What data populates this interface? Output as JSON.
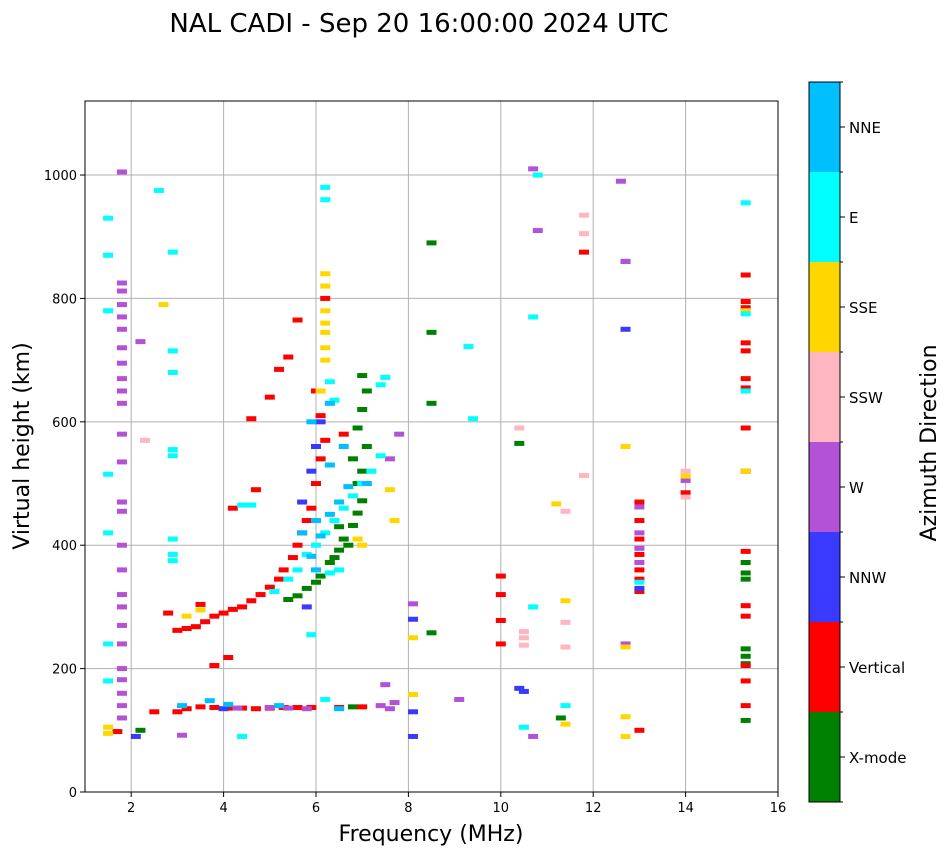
{
  "chart_data": {
    "type": "scatter",
    "subtype": "ionogram",
    "title": "NAL CADI - Sep 20 16:00:00 2024 UTC",
    "xlabel": "Frequency (MHz)",
    "ylabel": "Virtual height (km)",
    "xlim": [
      1,
      16
    ],
    "ylim": [
      0,
      1120
    ],
    "xticks": [
      2,
      4,
      6,
      8,
      10,
      12,
      14,
      16
    ],
    "yticks": [
      0,
      200,
      400,
      600,
      800,
      1000
    ],
    "grid": true,
    "colorbar": {
      "label": "Azimuth Direction",
      "categories": [
        "X-mode",
        "Vertical",
        "NNW",
        "W",
        "SSW",
        "SSE",
        "E",
        "NNE"
      ],
      "colors": [
        "#008000",
        "#ff0000",
        "#3a3aff",
        "#b452d7",
        "#ffb6c1",
        "#ffd700",
        "#00ffff",
        "#00bfff"
      ]
    },
    "series": [
      {
        "name": "X-mode",
        "color": "#008000",
        "points": [
          [
            5.4,
            312
          ],
          [
            5.6,
            318
          ],
          [
            5.8,
            330
          ],
          [
            6.0,
            340
          ],
          [
            6.1,
            350
          ],
          [
            6.3,
            372
          ],
          [
            6.5,
            392
          ],
          [
            6.6,
            410
          ],
          [
            6.8,
            432
          ],
          [
            6.9,
            452
          ],
          [
            7.0,
            472
          ],
          [
            6.9,
            500
          ],
          [
            7.0,
            520
          ],
          [
            6.8,
            540
          ],
          [
            7.1,
            560
          ],
          [
            6.9,
            590
          ],
          [
            7.0,
            620
          ],
          [
            7.1,
            650
          ],
          [
            7.0,
            675
          ],
          [
            6.5,
            430
          ],
          [
            6.4,
            380
          ],
          [
            6.7,
            400
          ],
          [
            6.8,
            138
          ],
          [
            2.2,
            100
          ],
          [
            8.5,
            890
          ],
          [
            8.5,
            745
          ],
          [
            8.5,
            630
          ],
          [
            8.5,
            258
          ],
          [
            10.4,
            565
          ],
          [
            11.3,
            120
          ],
          [
            15.3,
            372
          ],
          [
            15.3,
            355
          ],
          [
            15.3,
            345
          ],
          [
            15.3,
            232
          ],
          [
            15.3,
            220
          ],
          [
            15.3,
            208
          ],
          [
            15.3,
            116
          ]
        ]
      },
      {
        "name": "Vertical",
        "color": "#ff0000",
        "points": [
          [
            3.0,
            262
          ],
          [
            3.2,
            265
          ],
          [
            3.4,
            268
          ],
          [
            3.6,
            276
          ],
          [
            3.8,
            285
          ],
          [
            4.0,
            290
          ],
          [
            4.2,
            296
          ],
          [
            4.4,
            300
          ],
          [
            4.6,
            310
          ],
          [
            4.8,
            320
          ],
          [
            5.0,
            332
          ],
          [
            5.2,
            345
          ],
          [
            5.3,
            360
          ],
          [
            5.5,
            380
          ],
          [
            5.6,
            400
          ],
          [
            5.7,
            420
          ],
          [
            5.8,
            440
          ],
          [
            5.9,
            460
          ],
          [
            6.0,
            500
          ],
          [
            6.1,
            540
          ],
          [
            6.2,
            570
          ],
          [
            6.1,
            610
          ],
          [
            6.0,
            650
          ],
          [
            2.8,
            290
          ],
          [
            3.5,
            304
          ],
          [
            4.2,
            460
          ],
          [
            4.7,
            490
          ],
          [
            4.6,
            605
          ],
          [
            5.0,
            640
          ],
          [
            5.2,
            685
          ],
          [
            5.4,
            705
          ],
          [
            5.6,
            765
          ],
          [
            6.2,
            800
          ],
          [
            6.6,
            580
          ],
          [
            3.0,
            130
          ],
          [
            3.2,
            135
          ],
          [
            3.5,
            138
          ],
          [
            3.8,
            137
          ],
          [
            4.1,
            136
          ],
          [
            4.4,
            136
          ],
          [
            4.7,
            135
          ],
          [
            5.0,
            136
          ],
          [
            5.3,
            137
          ],
          [
            5.6,
            137
          ],
          [
            5.9,
            137
          ],
          [
            6.5,
            137
          ],
          [
            7.0,
            138
          ],
          [
            2.5,
            130
          ],
          [
            1.7,
            98
          ],
          [
            4.1,
            218
          ],
          [
            3.8,
            205
          ],
          [
            10.0,
            350
          ],
          [
            10.0,
            320
          ],
          [
            10.0,
            278
          ],
          [
            10.0,
            240
          ],
          [
            11.8,
            875
          ],
          [
            13.0,
            470
          ],
          [
            13.0,
            440
          ],
          [
            13.0,
            410
          ],
          [
            13.0,
            385
          ],
          [
            13.0,
            360
          ],
          [
            13.0,
            345
          ],
          [
            13.0,
            325
          ],
          [
            13.0,
            100
          ],
          [
            14.0,
            485
          ],
          [
            15.3,
            838
          ],
          [
            15.3,
            795
          ],
          [
            15.3,
            785
          ],
          [
            15.3,
            728
          ],
          [
            15.3,
            715
          ],
          [
            15.3,
            670
          ],
          [
            15.3,
            655
          ],
          [
            15.3,
            590
          ],
          [
            15.3,
            520
          ],
          [
            15.3,
            390
          ],
          [
            15.3,
            302
          ],
          [
            15.3,
            285
          ],
          [
            15.3,
            205
          ],
          [
            15.3,
            180
          ],
          [
            15.3,
            140
          ]
        ]
      },
      {
        "name": "NNW",
        "color": "#3a3aff",
        "points": [
          [
            2.1,
            90
          ],
          [
            4.0,
            135
          ],
          [
            5.7,
            470
          ],
          [
            5.9,
            520
          ],
          [
            6.0,
            560
          ],
          [
            6.1,
            600
          ],
          [
            5.8,
            300
          ],
          [
            8.1,
            280
          ],
          [
            8.1,
            130
          ],
          [
            8.1,
            90
          ],
          [
            10.4,
            168
          ],
          [
            10.5,
            163
          ],
          [
            12.7,
            860
          ],
          [
            12.7,
            750
          ],
          [
            13.0,
            330
          ]
        ]
      },
      {
        "name": "W",
        "color": "#b452d7",
        "points": [
          [
            1.8,
            1005
          ],
          [
            1.8,
            825
          ],
          [
            1.8,
            812
          ],
          [
            1.8,
            790
          ],
          [
            1.8,
            770
          ],
          [
            1.8,
            750
          ],
          [
            1.8,
            720
          ],
          [
            1.8,
            695
          ],
          [
            1.8,
            670
          ],
          [
            1.8,
            650
          ],
          [
            1.8,
            630
          ],
          [
            1.8,
            580
          ],
          [
            1.8,
            535
          ],
          [
            1.8,
            470
          ],
          [
            1.8,
            455
          ],
          [
            1.8,
            400
          ],
          [
            1.8,
            360
          ],
          [
            1.8,
            320
          ],
          [
            1.8,
            300
          ],
          [
            1.8,
            270
          ],
          [
            1.8,
            240
          ],
          [
            1.8,
            200
          ],
          [
            1.8,
            182
          ],
          [
            1.8,
            160
          ],
          [
            1.8,
            140
          ],
          [
            1.8,
            120
          ],
          [
            2.2,
            730
          ],
          [
            3.1,
            92
          ],
          [
            4.3,
            136
          ],
          [
            5.0,
            137
          ],
          [
            5.4,
            136
          ],
          [
            5.8,
            135
          ],
          [
            7.4,
            140
          ],
          [
            7.6,
            135
          ],
          [
            7.7,
            145
          ],
          [
            7.5,
            174
          ],
          [
            7.8,
            580
          ],
          [
            7.6,
            540
          ],
          [
            8.1,
            305
          ],
          [
            9.1,
            150
          ],
          [
            10.7,
            1010
          ],
          [
            10.8,
            910
          ],
          [
            10.7,
            90
          ],
          [
            12.6,
            990
          ],
          [
            12.7,
            860
          ],
          [
            13.0,
            462
          ],
          [
            13.0,
            420
          ],
          [
            13.0,
            395
          ],
          [
            13.0,
            372
          ],
          [
            12.7,
            240
          ],
          [
            14.0,
            505
          ]
        ]
      },
      {
        "name": "SSW",
        "color": "#ffb6c1",
        "points": [
          [
            2.3,
            570
          ],
          [
            10.4,
            590
          ],
          [
            10.5,
            260
          ],
          [
            10.5,
            250
          ],
          [
            10.5,
            238
          ],
          [
            11.4,
            455
          ],
          [
            11.4,
            275
          ],
          [
            11.4,
            235
          ],
          [
            11.8,
            935
          ],
          [
            11.8,
            905
          ],
          [
            11.8,
            513
          ],
          [
            14.0,
            520
          ],
          [
            14.0,
            478
          ]
        ]
      },
      {
        "name": "SSE",
        "color": "#ffd700",
        "points": [
          [
            1.5,
            105
          ],
          [
            1.5,
            95
          ],
          [
            2.7,
            790
          ],
          [
            6.2,
            840
          ],
          [
            6.2,
            820
          ],
          [
            6.2,
            780
          ],
          [
            6.2,
            760
          ],
          [
            6.2,
            745
          ],
          [
            6.2,
            720
          ],
          [
            6.2,
            700
          ],
          [
            6.1,
            650
          ],
          [
            7.2,
            520
          ],
          [
            7.7,
            440
          ],
          [
            7.6,
            490
          ],
          [
            6.9,
            410
          ],
          [
            7.0,
            400
          ],
          [
            3.2,
            285
          ],
          [
            3.5,
            295
          ],
          [
            8.1,
            250
          ],
          [
            8.1,
            158
          ],
          [
            11.2,
            467
          ],
          [
            11.4,
            310
          ],
          [
            11.4,
            110
          ],
          [
            12.7,
            560
          ],
          [
            12.7,
            235
          ],
          [
            12.7,
            122
          ],
          [
            12.7,
            90
          ],
          [
            14.0,
            512
          ],
          [
            15.3,
            780
          ],
          [
            15.3,
            520
          ]
        ]
      },
      {
        "name": "E",
        "color": "#00ffff",
        "points": [
          [
            1.5,
            930
          ],
          [
            1.5,
            870
          ],
          [
            1.5,
            780
          ],
          [
            1.5,
            515
          ],
          [
            1.5,
            420
          ],
          [
            1.5,
            240
          ],
          [
            1.5,
            180
          ],
          [
            2.6,
            975
          ],
          [
            2.9,
            875
          ],
          [
            2.9,
            715
          ],
          [
            2.9,
            680
          ],
          [
            2.9,
            555
          ],
          [
            2.9,
            545
          ],
          [
            2.9,
            410
          ],
          [
            2.9,
            385
          ],
          [
            2.9,
            375
          ],
          [
            4.4,
            465
          ],
          [
            4.6,
            465
          ],
          [
            5.1,
            325
          ],
          [
            5.4,
            345
          ],
          [
            5.6,
            360
          ],
          [
            5.8,
            385
          ],
          [
            6.0,
            400
          ],
          [
            6.2,
            420
          ],
          [
            6.4,
            440
          ],
          [
            6.6,
            460
          ],
          [
            6.8,
            480
          ],
          [
            7.0,
            500
          ],
          [
            7.2,
            520
          ],
          [
            7.4,
            545
          ],
          [
            6.5,
            360
          ],
          [
            6.3,
            355
          ],
          [
            5.9,
            255
          ],
          [
            6.2,
            980
          ],
          [
            6.2,
            960
          ],
          [
            6.3,
            665
          ],
          [
            6.4,
            635
          ],
          [
            7.5,
            672
          ],
          [
            7.4,
            660
          ],
          [
            4.4,
            90
          ],
          [
            6.2,
            150
          ],
          [
            9.3,
            722
          ],
          [
            9.4,
            605
          ],
          [
            10.7,
            770
          ],
          [
            10.7,
            300
          ],
          [
            10.5,
            105
          ],
          [
            10.8,
            1000
          ],
          [
            11.4,
            140
          ],
          [
            13.0,
            340
          ],
          [
            15.3,
            955
          ],
          [
            15.3,
            775
          ],
          [
            15.3,
            650
          ]
        ]
      },
      {
        "name": "NNE",
        "color": "#00bfff",
        "points": [
          [
            3.1,
            140
          ],
          [
            3.7,
            148
          ],
          [
            4.1,
            142
          ],
          [
            5.2,
            140
          ],
          [
            5.9,
            382
          ],
          [
            6.1,
            415
          ],
          [
            6.3,
            450
          ],
          [
            6.5,
            470
          ],
          [
            6.7,
            495
          ],
          [
            6.3,
            530
          ],
          [
            6.6,
            560
          ],
          [
            6.0,
            440
          ],
          [
            5.7,
            420
          ],
          [
            6.5,
            135
          ],
          [
            7.1,
            500
          ],
          [
            6.0,
            360
          ],
          [
            5.9,
            600
          ],
          [
            6.3,
            630
          ]
        ]
      }
    ]
  }
}
